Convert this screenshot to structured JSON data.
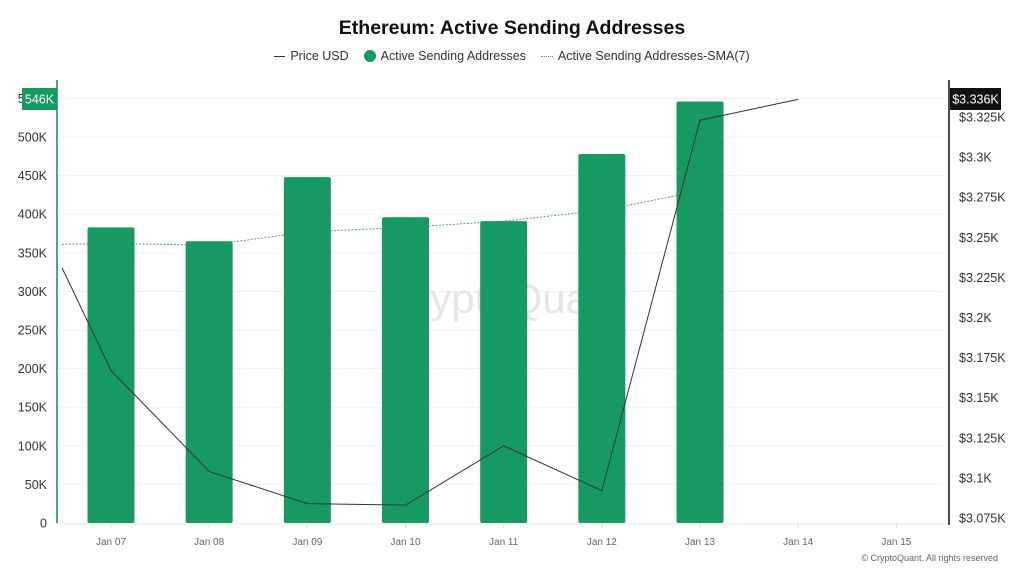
{
  "title": "Ethereum: Active Sending Addresses",
  "legend": [
    {
      "label": "Price USD",
      "type": "line",
      "color": "#333333"
    },
    {
      "label": "Active Sending Addresses",
      "type": "dot",
      "color": "#179a62"
    },
    {
      "label": "Active Sending Addresses-SMA(7)",
      "type": "dotted",
      "color": "#5a9e86"
    }
  ],
  "watermark": "CryptoQuant",
  "copyright": "© CryptoQuant. All rights reserved",
  "colors": {
    "bar": "#179a62",
    "price_line": "#333333",
    "sma_line": "#5a9e86",
    "left_axis": "#47a982",
    "right_axis": "#111111",
    "grid": "#f1f1f1",
    "left_marker_bg": "#179a62",
    "right_marker_bg": "#111111"
  },
  "markers": {
    "left_label": "546K",
    "right_label": "$3.336K"
  },
  "chart_data": {
    "type": "bar+line",
    "title": "Ethereum: Active Sending Addresses",
    "xlabel": "",
    "ylabel_left": "Active Sending Addresses",
    "ylabel_right": "Price USD",
    "grid": true,
    "legend_position": "top",
    "categories": [
      "Jan 07",
      "Jan 08",
      "Jan 09",
      "Jan 10",
      "Jan 11",
      "Jan 12",
      "Jan 13",
      "Jan 14",
      "Jan 15"
    ],
    "series": [
      {
        "name": "Active Sending Addresses",
        "type": "bar",
        "axis": "left",
        "values": [
          383000,
          365000,
          448000,
          396000,
          391000,
          478000,
          546000,
          null,
          null
        ]
      },
      {
        "name": "Active Sending Addresses-SMA(7)",
        "type": "line",
        "style": "dotted",
        "axis": "left",
        "left_edge_value": 361000,
        "values": [
          362000,
          360000,
          377000,
          383000,
          391000,
          405000,
          430000,
          null,
          null
        ]
      },
      {
        "name": "Price USD",
        "type": "line",
        "axis": "right",
        "left_edge_value": 3231,
        "values": [
          3167,
          3104,
          3084,
          3083,
          3120,
          3092,
          3323,
          3336,
          null
        ]
      }
    ],
    "left_axis": {
      "ylim": [
        0,
        550000
      ],
      "ticks": [
        {
          "value": 0,
          "label": "0"
        },
        {
          "value": 50000,
          "label": "50K"
        },
        {
          "value": 100000,
          "label": "100K"
        },
        {
          "value": 150000,
          "label": "150K"
        },
        {
          "value": 200000,
          "label": "200K"
        },
        {
          "value": 250000,
          "label": "250K"
        },
        {
          "value": 300000,
          "label": "300K"
        },
        {
          "value": 350000,
          "label": "350K"
        },
        {
          "value": 400000,
          "label": "400K"
        },
        {
          "value": 450000,
          "label": "450K"
        },
        {
          "value": 500000,
          "label": "500K"
        },
        {
          "value": 550000,
          "label": "550K"
        }
      ]
    },
    "right_axis": {
      "ylim": [
        3075,
        3336
      ],
      "ticks": [
        {
          "value": 3075,
          "label": "$3.075K"
        },
        {
          "value": 3100,
          "label": "$3.1K"
        },
        {
          "value": 3125,
          "label": "$3.125K"
        },
        {
          "value": 3150,
          "label": "$3.15K"
        },
        {
          "value": 3175,
          "label": "$3.175K"
        },
        {
          "value": 3200,
          "label": "$3.2K"
        },
        {
          "value": 3225,
          "label": "$3.225K"
        },
        {
          "value": 3250,
          "label": "$3.25K"
        },
        {
          "value": 3275,
          "label": "$3.275K"
        },
        {
          "value": 3300,
          "label": "$3.3K"
        },
        {
          "value": 3325,
          "label": "$3.325K"
        }
      ]
    }
  }
}
